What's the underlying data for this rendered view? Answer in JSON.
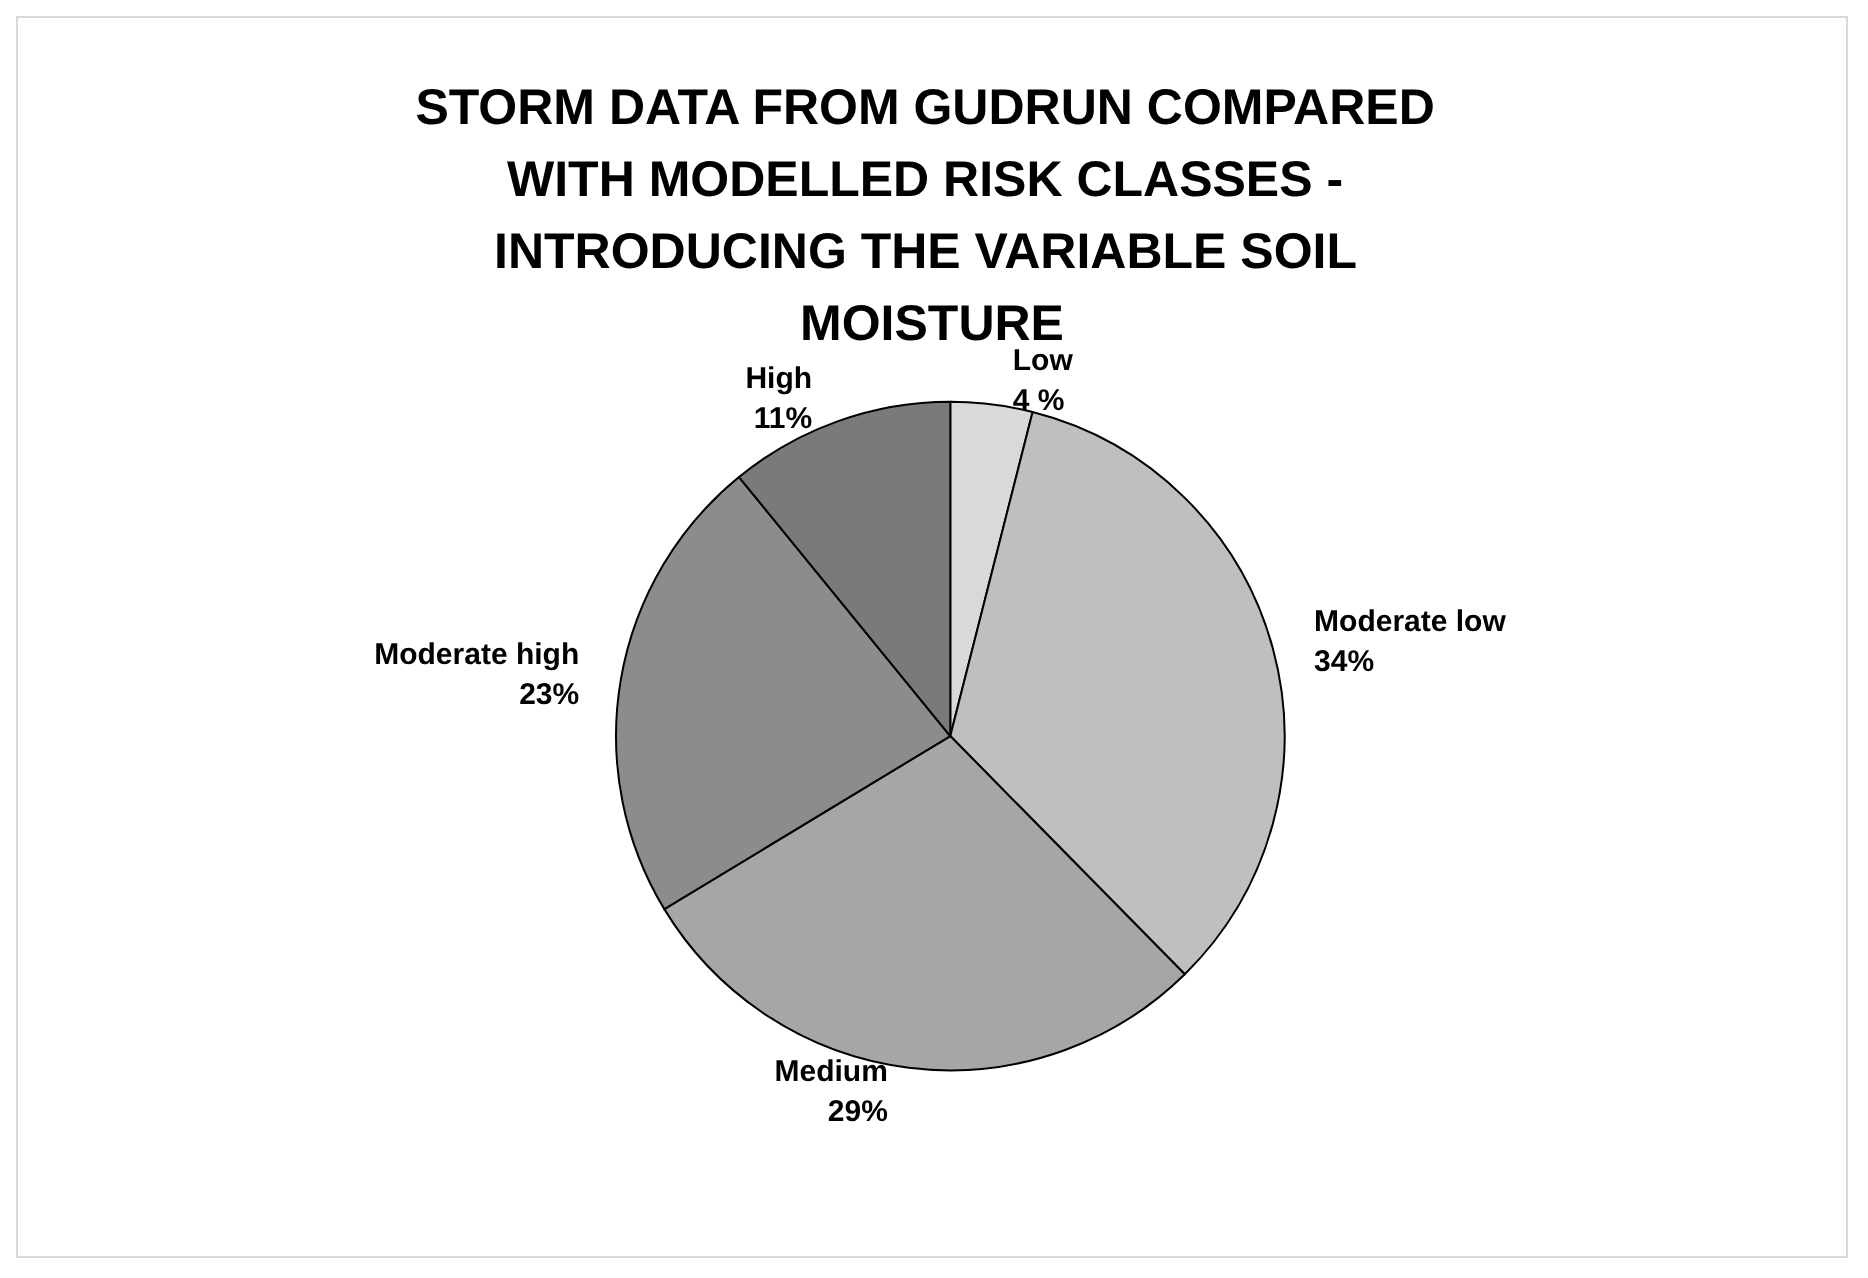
{
  "chart_data": {
    "type": "pie",
    "title": "STORM DATA FROM GUDRUN COMPARED WITH MODELLED RISK CLASSES - INTRODUCING THE VARIABLE SOIL MOISTURE",
    "categories": [
      "Low",
      "Moderate low",
      "Medium",
      "Moderate high",
      "High"
    ],
    "values": [
      4,
      34,
      29,
      23,
      11
    ],
    "value_labels": [
      "4 %",
      "34%",
      "29%",
      "23%",
      "11%"
    ],
    "colors": [
      "#d9d9d9",
      "#bfbfbf",
      "#a6a6a6",
      "#8c8c8c",
      "#7a7a7a"
    ],
    "legend": false
  }
}
